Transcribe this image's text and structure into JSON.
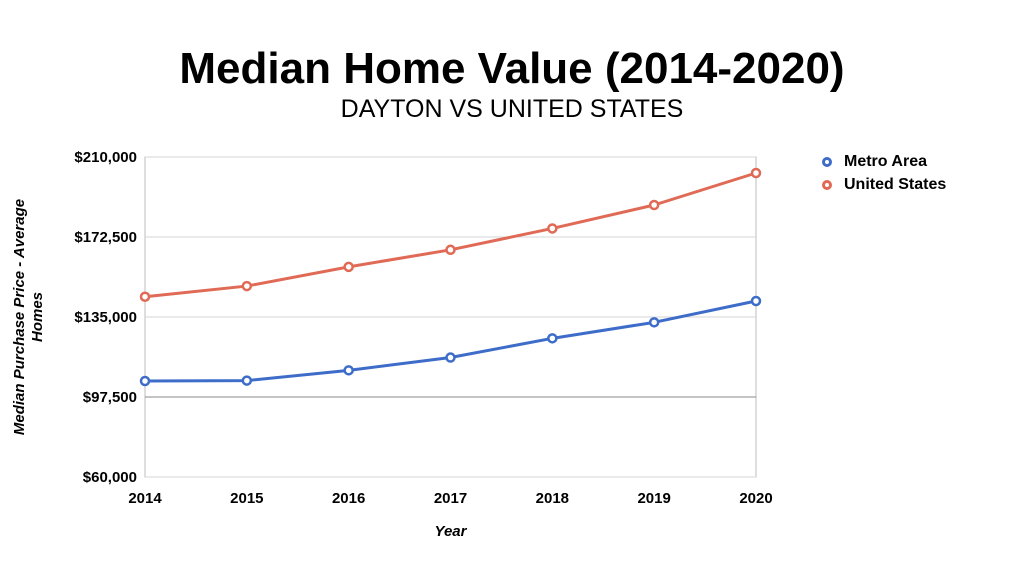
{
  "chart_data": {
    "type": "line",
    "title": "Median Home Value (2014-2020)",
    "subtitle": "DAYTON VS UNITED STATES",
    "xlabel": "Year",
    "ylabel": "Median Purchase Price - Average Homes",
    "ylim": [
      60000,
      210000
    ],
    "yticks": [
      60000,
      97500,
      135000,
      172500,
      210000
    ],
    "ytick_labels": [
      "$60,000",
      "$97,500",
      "$135,000",
      "$172,500",
      "$210,000"
    ],
    "categories": [
      "2014",
      "2015",
      "2016",
      "2017",
      "2018",
      "2019",
      "2020"
    ],
    "grid": true,
    "legend_position": "right",
    "series": [
      {
        "name": "Metro Area",
        "color": "#3d6cc9",
        "values": [
          105000,
          105200,
          110000,
          116000,
          125000,
          132500,
          142500
        ]
      },
      {
        "name": "United States",
        "color": "#e06a55",
        "values": [
          144500,
          149500,
          158500,
          166500,
          176500,
          187500,
          202500
        ]
      }
    ]
  }
}
